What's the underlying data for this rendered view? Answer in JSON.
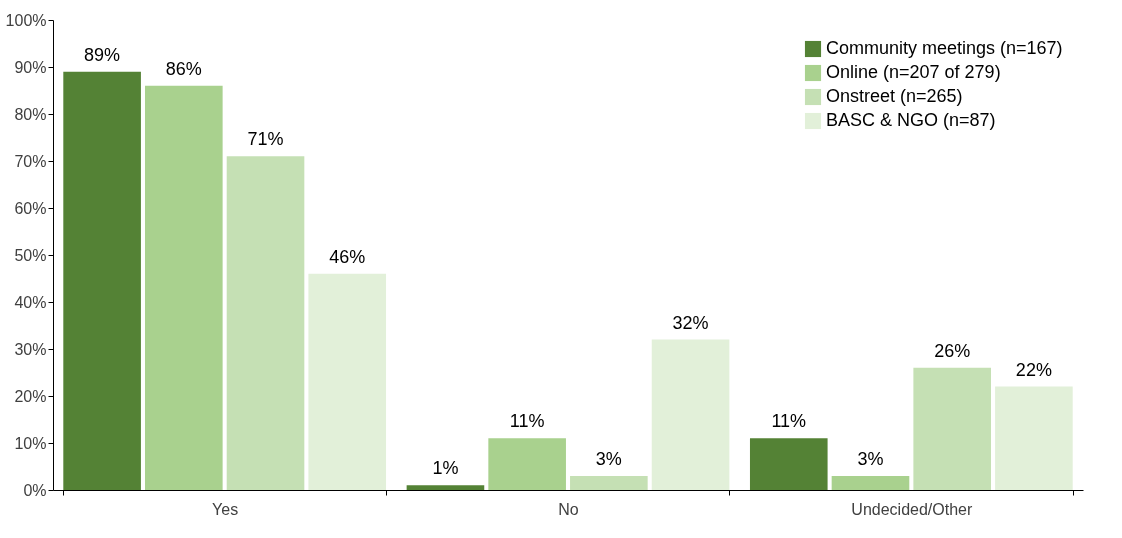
{
  "chart_data": {
    "type": "bar",
    "categories": [
      "Yes",
      "No",
      "Undecided/Other"
    ],
    "series": [
      {
        "name": "Community meetings (n=167)",
        "color": "#548235",
        "values": [
          89,
          1,
          11
        ],
        "value_labels": [
          "89%",
          "1%",
          "11%"
        ]
      },
      {
        "name": "Online (n=207 of 279)",
        "color": "#a9d18e",
        "values": [
          86,
          11,
          3
        ],
        "value_labels": [
          "86%",
          "11%",
          "3%"
        ]
      },
      {
        "name": "Onstreet (n=265)",
        "color": "#c5e0b4",
        "values": [
          71,
          3,
          26
        ],
        "value_labels": [
          "71%",
          "3%",
          "26%"
        ]
      },
      {
        "name": "BASC & NGO (n=87)",
        "color": "#e2f0d9",
        "values": [
          46,
          32,
          22
        ],
        "value_labels": [
          "46%",
          "32%",
          "22%"
        ]
      }
    ],
    "ylim": [
      0,
      100
    ],
    "yticks": [
      {
        "value": 0,
        "label": "0%"
      },
      {
        "value": 10,
        "label": "10%"
      },
      {
        "value": 20,
        "label": "20%"
      },
      {
        "value": 30,
        "label": "30%"
      },
      {
        "value": 40,
        "label": "40%"
      },
      {
        "value": 50,
        "label": "50%"
      },
      {
        "value": 60,
        "label": "60%"
      },
      {
        "value": 70,
        "label": "70%"
      },
      {
        "value": 80,
        "label": "80%"
      },
      {
        "value": 90,
        "label": "90%"
      },
      {
        "value": 100,
        "label": "100%"
      }
    ],
    "grid": false,
    "legend": "top right"
  }
}
